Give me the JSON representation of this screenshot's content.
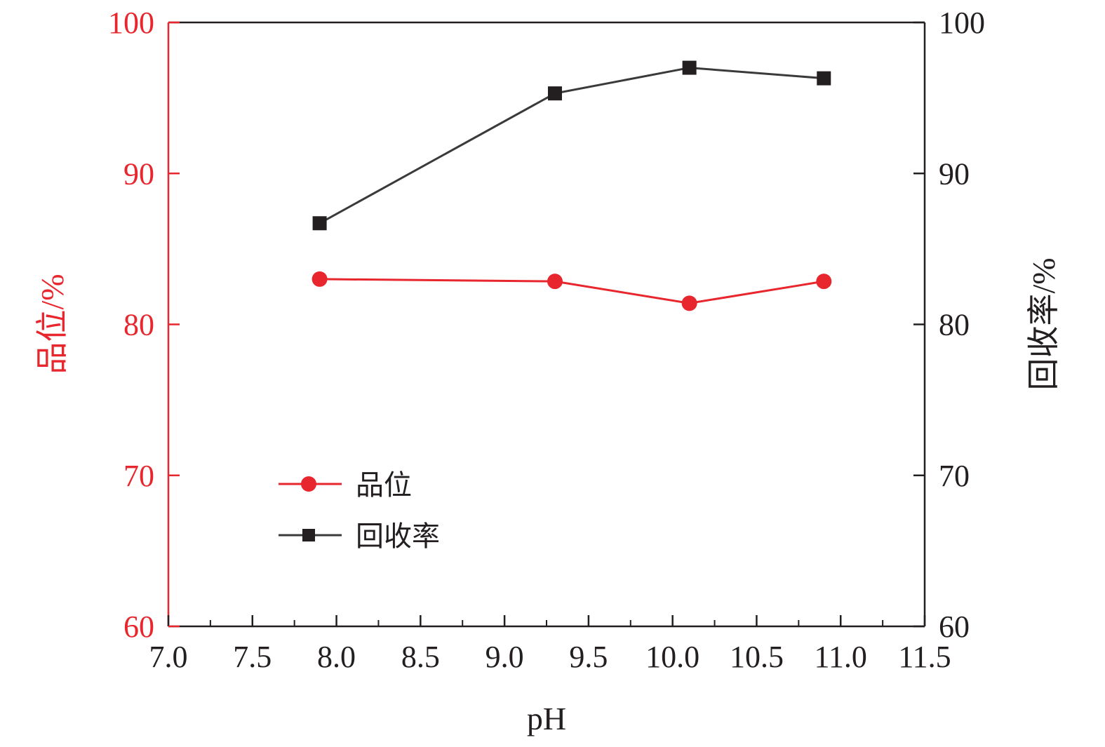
{
  "chart_data": {
    "type": "line",
    "xlabel": "pH",
    "x_ticks": [
      "7.0",
      "7.5",
      "8.0",
      "8.5",
      "9.0",
      "9.5",
      "10.0",
      "10.5",
      "11.0",
      "11.5"
    ],
    "xlim": [
      7.0,
      11.5
    ],
    "y_left": {
      "label": "品位/%",
      "ticks": [
        "60",
        "70",
        "80",
        "90",
        "100"
      ],
      "ylim": [
        60,
        100
      ],
      "color": "#e8262d"
    },
    "y_right": {
      "label": "回收率/%",
      "ticks": [
        "60",
        "70",
        "80",
        "90",
        "100"
      ],
      "ylim": [
        60,
        100
      ],
      "color": "#231f20"
    },
    "series": [
      {
        "name": "品位",
        "axis": "left",
        "marker": "circle",
        "color": "#e8262d",
        "x": [
          7.9,
          9.3,
          10.1,
          10.9
        ],
        "y": [
          83.0,
          82.85,
          81.4,
          82.85
        ]
      },
      {
        "name": "回收率",
        "axis": "right",
        "marker": "square",
        "color": "#231f20",
        "x": [
          7.9,
          9.3,
          10.1,
          10.9
        ],
        "y": [
          86.7,
          95.3,
          97.0,
          96.3
        ]
      }
    ],
    "legend_position": "lower-left",
    "grid": false
  }
}
